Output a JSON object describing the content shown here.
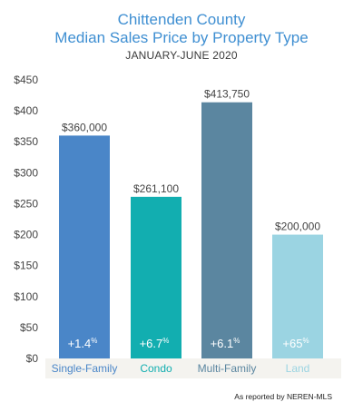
{
  "chart_data": {
    "type": "bar",
    "title": [
      "Chittenden County",
      "Median Sales Price by Property Type"
    ],
    "subtitle": "JANUARY-JUNE 2020",
    "categories": [
      "Single-Family",
      "Condo",
      "Multi-Family",
      "Land"
    ],
    "values": [
      360000,
      261100,
      413750,
      200000
    ],
    "value_labels": [
      "$360,000",
      "$261,100",
      "$413,750",
      "$200,000"
    ],
    "change_labels": [
      {
        "value": "+1.4",
        "unit": "%"
      },
      {
        "value": "+6.7",
        "unit": "%"
      },
      {
        "value": "+6.1",
        "unit": "%"
      },
      {
        "value": "+65",
        "unit": "%"
      }
    ],
    "bar_colors": [
      "#4a86c8",
      "#12aeb0",
      "#5b86a0",
      "#9bd4e2"
    ],
    "category_label_colors": [
      "#4a86c8",
      "#12aeb0",
      "#5b86a0",
      "#9bd4e2"
    ],
    "ylim": [
      0,
      450000
    ],
    "yticks": [
      0,
      50000,
      100000,
      150000,
      200000,
      250000,
      300000,
      350000,
      400000,
      450000
    ],
    "ytick_labels": [
      "$0",
      "$50",
      "$100",
      "$150",
      "$200",
      "$250",
      "$300",
      "$350",
      "$400",
      "$450"
    ],
    "grid": false,
    "legend": "none",
    "xlabel": "",
    "ylabel": ""
  },
  "footer": {
    "source": "As reported by NEREN-MLS"
  }
}
